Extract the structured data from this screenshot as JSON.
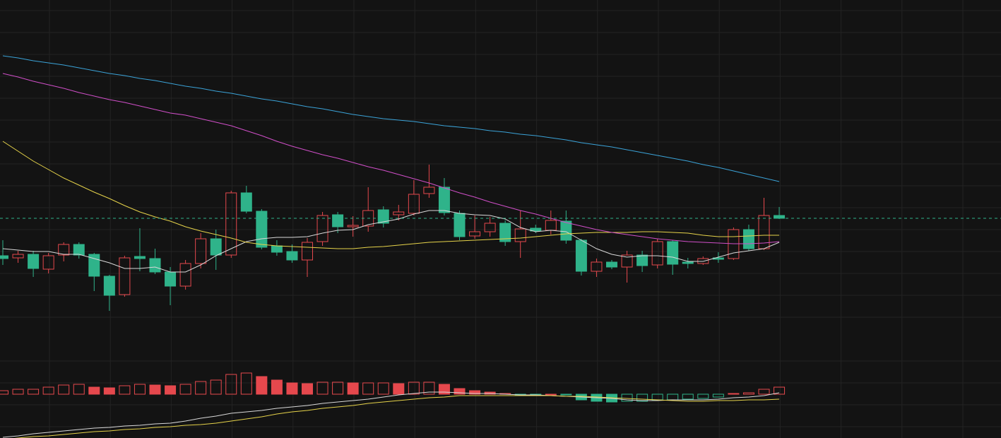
{
  "chart_data": [
    {
      "type": "candlestick",
      "categories": [
        null,
        null,
        null,
        null,
        null,
        null,
        null,
        null,
        null,
        null,
        null,
        null,
        null,
        null,
        null,
        null,
        null,
        null,
        null,
        null,
        null,
        null,
        null,
        null,
        null,
        null,
        null,
        null,
        null,
        null,
        null,
        null,
        null,
        null,
        null,
        null,
        null,
        null,
        null,
        null,
        null,
        null,
        null,
        null,
        null,
        null,
        null,
        null,
        null,
        null,
        null,
        null
      ],
      "open": [
        118,
        115,
        120,
        99,
        119,
        134,
        120,
        89,
        63,
        117,
        114,
        95,
        75,
        107,
        142,
        119,
        207,
        181,
        132,
        124,
        112,
        138,
        176,
        159,
        160,
        183,
        176,
        178,
        206,
        215,
        178,
        146,
        152,
        164,
        138,
        157,
        154,
        167,
        140,
        96,
        109,
        102,
        119,
        105,
        138,
        109,
        107,
        115,
        114,
        155,
        128,
        175
      ],
      "high": [
        140,
        125,
        125,
        122,
        137,
        137,
        122,
        91,
        118,
        157,
        128,
        102,
        112,
        150,
        155,
        210,
        217,
        184,
        140,
        134,
        143,
        180,
        180,
        174,
        215,
        188,
        190,
        225,
        247,
        228,
        182,
        175,
        173,
        168,
        182,
        162,
        182,
        182,
        142,
        114,
        112,
        125,
        125,
        142,
        140,
        115,
        117,
        123,
        158,
        162,
        200,
        187
      ],
      "low": [
        105,
        108,
        88,
        93,
        110,
        114,
        68,
        40,
        60,
        96,
        92,
        48,
        70,
        100,
        98,
        115,
        178,
        127,
        118,
        108,
        88,
        132,
        150,
        145,
        152,
        158,
        168,
        175,
        200,
        175,
        140,
        142,
        145,
        132,
        115,
        150,
        148,
        135,
        90,
        88,
        99,
        80,
        95,
        100,
        91,
        100,
        105,
        108,
        112,
        125,
        126,
        170
      ],
      "close": [
        114,
        120,
        100,
        118,
        134,
        119,
        89,
        62,
        115,
        114,
        95,
        75,
        107,
        142,
        119,
        207,
        181,
        130,
        123,
        112,
        137,
        175,
        159,
        161,
        182,
        164,
        180,
        205,
        215,
        179,
        145,
        152,
        164,
        138,
        156,
        153,
        168,
        140,
        96,
        109,
        102,
        119,
        104,
        138,
        106,
        107,
        114,
        113,
        155,
        128,
        175,
        171
      ],
      "up_color": "#e5484d",
      "down_color": "#2fb38a",
      "series": [
        {
          "color": "#d9d9d9",
          "values": [
            128,
            126,
            124,
            124,
            120,
            120,
            114,
            108,
            100,
            100,
            102,
            95,
            95,
            105,
            118,
            128,
            138,
            142,
            144,
            144,
            145,
            150,
            154,
            155,
            162,
            166,
            170,
            177,
            182,
            182,
            178,
            176,
            175,
            170,
            158,
            152,
            154,
            152,
            140,
            128,
            120,
            116,
            118,
            118,
            116,
            110,
            110,
            116,
            122,
            125,
            128,
            137
          ]
        },
        {
          "color": "#e6d34a",
          "values": [
            280,
            266,
            252,
            240,
            228,
            218,
            208,
            199,
            189,
            180,
            173,
            167,
            159,
            153,
            148,
            143,
            137,
            134,
            132,
            131,
            130,
            129,
            128,
            128,
            130,
            131,
            133,
            135,
            137,
            138,
            139,
            140,
            141,
            142,
            143,
            145,
            147,
            149,
            150,
            151,
            151,
            151,
            152,
            152,
            151,
            150,
            147,
            145,
            145,
            146,
            147,
            147
          ]
        },
        {
          "color": "#d14fc9",
          "values": [
            376,
            371,
            365,
            360,
            355,
            349,
            344,
            339,
            335,
            330,
            325,
            320,
            317,
            312,
            307,
            302,
            295,
            288,
            280,
            273,
            267,
            261,
            256,
            250,
            244,
            239,
            233,
            227,
            221,
            214,
            207,
            201,
            194,
            188,
            182,
            177,
            171,
            165,
            160,
            155,
            151,
            148,
            145,
            142,
            140,
            138,
            137,
            136,
            135,
            135,
            136,
            138
          ]
        },
        {
          "color": "#3ba3d8",
          "values": [
            401,
            398,
            394,
            391,
            388,
            384,
            380,
            376,
            373,
            369,
            366,
            362,
            358,
            355,
            351,
            348,
            344,
            340,
            337,
            333,
            329,
            326,
            322,
            318,
            315,
            312,
            310,
            308,
            305,
            302,
            300,
            298,
            295,
            293,
            290,
            288,
            285,
            282,
            278,
            275,
            272,
            268,
            264,
            260,
            256,
            252,
            247,
            243,
            238,
            233,
            228,
            223
          ]
        }
      ],
      "ylim": [
        0,
        480
      ],
      "yticks": [
        31,
        62,
        93,
        124,
        155,
        186,
        217,
        248,
        279,
        310,
        341,
        372,
        403,
        434,
        465
      ],
      "grid": true,
      "last_price_line": true
    },
    {
      "type": "macd",
      "values": [
        5,
        7,
        7,
        10,
        13,
        14,
        10,
        9,
        12,
        14,
        13,
        12,
        14,
        18,
        20,
        28,
        30,
        25,
        20,
        16,
        15,
        17,
        17,
        16,
        16,
        16,
        15,
        17,
        17,
        14,
        8,
        5,
        3,
        1,
        -1,
        -1,
        0,
        -1,
        -8,
        -10,
        -11,
        -10,
        -10,
        -8,
        -8,
        -7,
        -6,
        -4,
        1,
        2,
        7,
        10
      ],
      "up_color": "#e5484d",
      "down_color": "#2fb38a",
      "series": [
        {
          "color": "#d9d9d9",
          "values": [
            -61,
            -59,
            -56,
            -54,
            -52,
            -50,
            -48,
            -47,
            -45,
            -44,
            -42,
            -41,
            -38,
            -34,
            -31,
            -27,
            -25,
            -23,
            -20,
            -18,
            -16,
            -13,
            -11,
            -9,
            -7,
            -4,
            -1,
            1,
            3,
            3,
            2,
            1,
            1,
            0,
            -1,
            -1,
            -2,
            -3,
            -4,
            -5,
            -6,
            -8,
            -9,
            -9,
            -8,
            -8,
            -8,
            -7,
            -5,
            -4,
            -2,
            2
          ]
        },
        {
          "color": "#e6d34a",
          "values": [
            -64,
            -62,
            -60,
            -59,
            -57,
            -55,
            -53,
            -52,
            -50,
            -49,
            -47,
            -46,
            -44,
            -43,
            -41,
            -38,
            -35,
            -32,
            -28,
            -25,
            -23,
            -20,
            -18,
            -16,
            -13,
            -11,
            -9,
            -7,
            -5,
            -4,
            -2,
            -2,
            -2,
            -2,
            -2,
            -2,
            -2,
            -3,
            -3,
            -4,
            -5,
            -6,
            -7,
            -8,
            -9,
            -10,
            -10,
            -9,
            -9,
            -8,
            -8,
            -7
          ]
        }
      ],
      "ylim": [
        -62,
        78
      ],
      "yticks": [
        47,
        16,
        -15,
        -46
      ],
      "grid": true
    }
  ]
}
